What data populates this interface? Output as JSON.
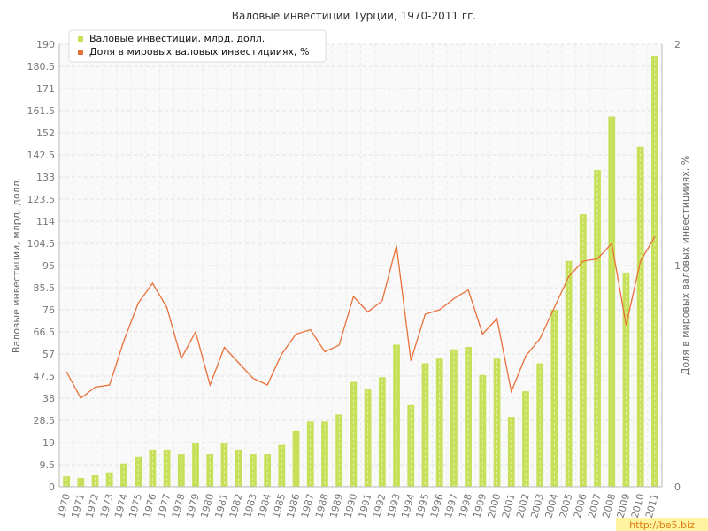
{
  "chart_data": {
    "type": "bar",
    "title": "Валовые инвестиции Турции, 1970-2011 гг.",
    "ylabel": "Валовые инвестиции, млрд. долл.",
    "y2label": "Доля в мировых валовых инвестицииях, %",
    "ylim": [
      0,
      190
    ],
    "y2lim": [
      0,
      2
    ],
    "yticks": [
      "0",
      "9.5",
      "19",
      "28.5",
      "38",
      "47.5",
      "57",
      "66.5",
      "76",
      "85.5",
      "95",
      "104.5",
      "114",
      "123.5",
      "133",
      "142.5",
      "152",
      "161.5",
      "171",
      "180.5",
      "190"
    ],
    "y2ticks": [
      "0",
      "1",
      "2"
    ],
    "grid": true,
    "legend_position": "top-left",
    "categories": [
      "1970",
      "1971",
      "1972",
      "1973",
      "1974",
      "1975",
      "1976",
      "1977",
      "1978",
      "1979",
      "1980",
      "1981",
      "1982",
      "1983",
      "1984",
      "1985",
      "1986",
      "1987",
      "1988",
      "1989",
      "1990",
      "1991",
      "1992",
      "1993",
      "1994",
      "1995",
      "1996",
      "1997",
      "1998",
      "1999",
      "2000",
      "2001",
      "2002",
      "2003",
      "2004",
      "2005",
      "2006",
      "2007",
      "2008",
      "2009",
      "2010",
      "2011"
    ],
    "series": [
      {
        "name": "Валовые инвестиции, млрд. долл.",
        "type": "bar",
        "axis": "left",
        "color": "#c6e05a",
        "values": [
          4.5,
          3.8,
          4.9,
          6.2,
          10,
          13,
          16,
          16,
          14,
          19,
          14,
          19,
          16,
          14,
          14,
          18,
          24,
          28,
          28,
          31,
          45,
          42,
          47,
          61,
          35,
          53,
          55,
          59,
          60,
          48,
          55,
          30,
          41,
          53,
          76,
          97,
          117,
          136,
          159,
          92,
          146,
          185
        ]
      },
      {
        "name": "Доля в мировых валовых инвестицииях, %",
        "type": "line",
        "axis": "right",
        "color": "#e8703a",
        "values": [
          0.52,
          0.4,
          0.45,
          0.46,
          0.66,
          0.83,
          0.92,
          0.81,
          0.58,
          0.7,
          0.46,
          0.63,
          0.56,
          0.49,
          0.46,
          0.6,
          0.69,
          0.71,
          0.61,
          0.64,
          0.86,
          0.79,
          0.84,
          1.09,
          0.57,
          0.78,
          0.8,
          0.85,
          0.89,
          0.69,
          0.76,
          0.43,
          0.59,
          0.67,
          0.81,
          0.95,
          1.02,
          1.03,
          1.1,
          0.73,
          1.02,
          1.13
        ]
      }
    ]
  },
  "watermark": {
    "text": "http://be5.biz"
  }
}
